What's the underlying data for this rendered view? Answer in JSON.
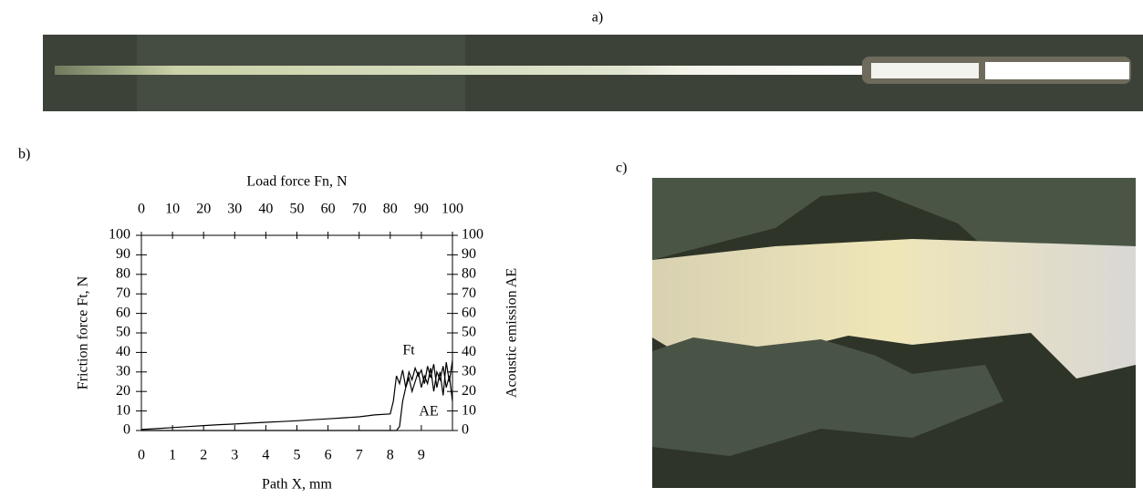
{
  "panels": {
    "a": "a)",
    "b": "b)",
    "c": "c)"
  },
  "chart_data": {
    "type": "line",
    "xlabel": "Path X, mm",
    "x2label": "Load force Fn, N",
    "ylabel": "Friction force Ft, N",
    "y2label": "Acoustic emission AE",
    "xlim": [
      0,
      10
    ],
    "xticks": [
      0,
      1,
      2,
      3,
      4,
      5,
      6,
      7,
      8,
      9
    ],
    "x2lim": [
      0,
      100
    ],
    "x2ticks": [
      0,
      10,
      20,
      30,
      40,
      50,
      60,
      70,
      80,
      90,
      100
    ],
    "ylim": [
      0,
      100
    ],
    "yticks": [
      0,
      10,
      20,
      30,
      40,
      50,
      60,
      70,
      80,
      90,
      100
    ],
    "y2lim": [
      0,
      100
    ],
    "y2ticks": [
      0,
      10,
      20,
      30,
      40,
      50,
      60,
      70,
      80,
      90,
      100
    ],
    "x": [
      0,
      0.5,
      1,
      1.5,
      2,
      2.5,
      3,
      3.5,
      4,
      4.5,
      5,
      5.5,
      6,
      6.5,
      7,
      7.5,
      8,
      8.1,
      8.2,
      8.3,
      8.4,
      8.5,
      8.6,
      8.7,
      8.8,
      8.9,
      9,
      9.1,
      9.2,
      9.3,
      9.4,
      9.5,
      9.6,
      9.7,
      9.8,
      9.9,
      10
    ],
    "series": [
      {
        "name": "Ft",
        "color": "#000000",
        "values": [
          0.5,
          1,
          1.5,
          2,
          2.5,
          3,
          3.3,
          3.8,
          4.2,
          4.6,
          5,
          5.5,
          6,
          6.5,
          7,
          8,
          8.5,
          15,
          28,
          24,
          31,
          22,
          30,
          26,
          32,
          28,
          31,
          24,
          33,
          27,
          34,
          22,
          30,
          18,
          35,
          25,
          36
        ]
      },
      {
        "name": "AE",
        "color": "#000000",
        "axis": "y2",
        "values": [
          0,
          0,
          0,
          0,
          0,
          0,
          0,
          0,
          0,
          0,
          0,
          0,
          0,
          0,
          0,
          0,
          0,
          0,
          0,
          2,
          15,
          22,
          27,
          20,
          25,
          30,
          22,
          28,
          24,
          32,
          20,
          30,
          26,
          33,
          22,
          28,
          15
        ]
      }
    ]
  }
}
